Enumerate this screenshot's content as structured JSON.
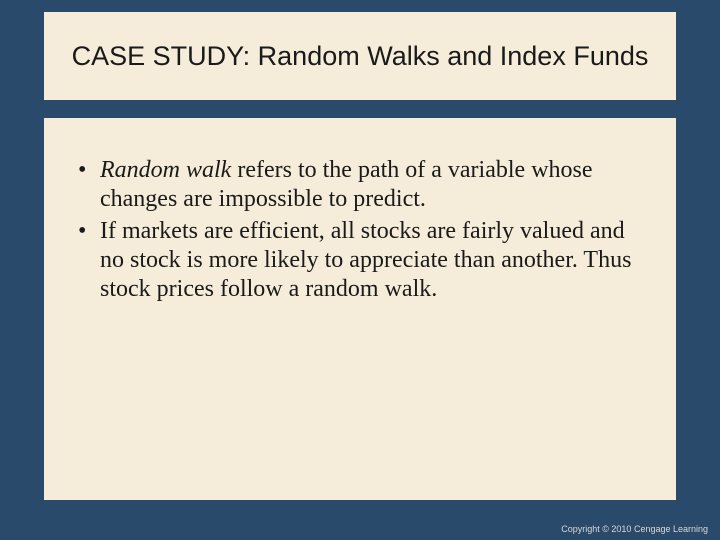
{
  "slide": {
    "background_color": "#2a4a6b",
    "box_background_color": "#f5ecd9",
    "title": "CASE STUDY: Random Walks and Index Funds",
    "title_fontsize": 27,
    "title_color": "#1a1a1a",
    "bullets": [
      {
        "italic_lead": "Random walk",
        "rest": " refers to the path of a variable whose changes are impossible to predict."
      },
      {
        "italic_lead": "",
        "rest": "If markets are efficient, all stocks are fairly valued and no stock is more likely to appreciate than another.  Thus stock prices follow a random walk."
      }
    ],
    "body_fontsize": 24,
    "body_color": "#1a1a1a",
    "copyright": "Copyright © 2010 Cengage Learning",
    "copyright_fontsize": 9,
    "copyright_color": "#d8d8d8"
  }
}
